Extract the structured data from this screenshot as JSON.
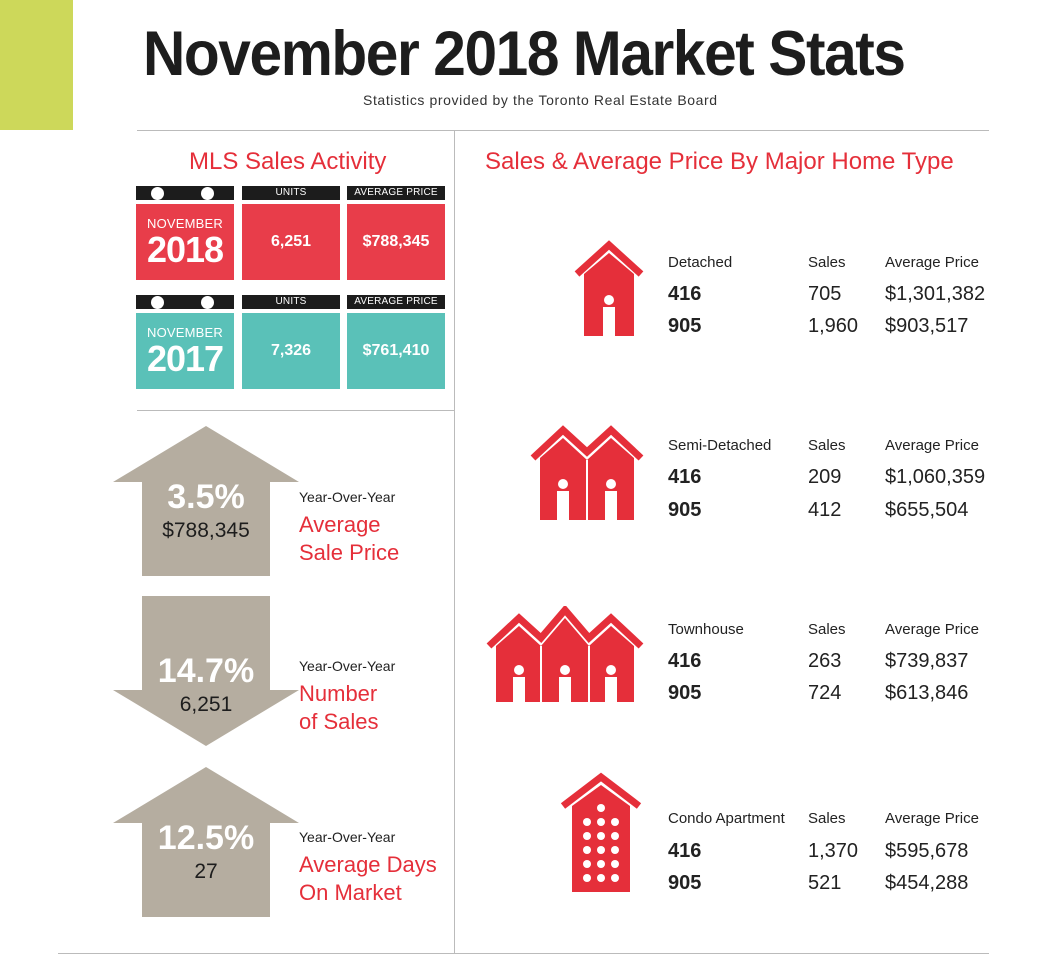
{
  "header": {
    "title": "November 2018 Market Stats",
    "subtitle": "Statistics provided by the Toronto Real Estate Board"
  },
  "mls": {
    "title": "MLS Sales Activity",
    "rows": [
      {
        "month": "NOVEMBER",
        "year": "2018",
        "units_label": "UNITS",
        "price_label": "AVERAGE PRICE",
        "units": "6,251",
        "price": "$788,345",
        "color": "#e83d4a"
      },
      {
        "month": "NOVEMBER",
        "year": "2017",
        "units_label": "UNITS",
        "price_label": "AVERAGE PRICE",
        "units": "7,326",
        "price": "$761,410",
        "color": "#5ac1b8"
      }
    ]
  },
  "yoy": [
    {
      "direction": "up",
      "percent": "3.5%",
      "value": "$788,345",
      "label": "Year-Over-Year",
      "metric_line1": "Average",
      "metric_line2": "Sale Price"
    },
    {
      "direction": "down",
      "percent": "14.7%",
      "value": "6,251",
      "label": "Year-Over-Year",
      "metric_line1": "Number",
      "metric_line2": "of Sales"
    },
    {
      "direction": "up",
      "percent": "12.5%",
      "value": "27",
      "label": "Year-Over-Year",
      "metric_line1": "Average Days",
      "metric_line2": "On Market"
    }
  ],
  "home_types": {
    "title": "Sales & Average Price By Major Home Type",
    "types": [
      {
        "name": "Detached",
        "icon": "detached-house-icon",
        "sales_label": "Sales",
        "price_label": "Average Price",
        "rows": [
          {
            "code": "416",
            "sales": "705",
            "price": "$1,301,382"
          },
          {
            "code": "905",
            "sales": "1,960",
            "price": "$903,517"
          }
        ]
      },
      {
        "name": "Semi-Detached",
        "icon": "semi-detached-house-icon",
        "sales_label": "Sales",
        "price_label": "Average Price",
        "rows": [
          {
            "code": "416",
            "sales": "209",
            "price": "$1,060,359"
          },
          {
            "code": "905",
            "sales": "412",
            "price": "$655,504"
          }
        ]
      },
      {
        "name": "Townhouse",
        "icon": "townhouse-icon",
        "sales_label": "Sales",
        "price_label": "Average Price",
        "rows": [
          {
            "code": "416",
            "sales": "263",
            "price": "$739,837"
          },
          {
            "code": "905",
            "sales": "724",
            "price": "$613,846"
          }
        ]
      },
      {
        "name": "Condo Apartment",
        "icon": "condo-apartment-icon",
        "sales_label": "Sales",
        "price_label": "Average Price",
        "rows": [
          {
            "code": "416",
            "sales": "1,370",
            "price": "$595,678"
          },
          {
            "code": "905",
            "sales": "521",
            "price": "$454,288"
          }
        ]
      }
    ]
  },
  "colors": {
    "accent_red": "#e52f3a",
    "accent_teal": "#5ac1b8",
    "accent_lime": "#cdd85a",
    "arrow_gray": "#b5ada0"
  }
}
